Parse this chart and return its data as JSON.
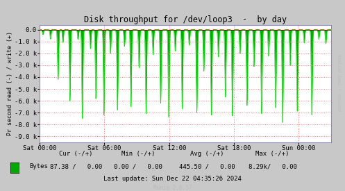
{
  "title": "Disk throughput for /dev/loop3  -  by day",
  "ylabel": "Pr second read (-) / write (+)",
  "ylim": [
    -9500,
    400
  ],
  "yticks": [
    0,
    -1000,
    -2000,
    -3000,
    -4000,
    -5000,
    -6000,
    -7000,
    -8000,
    -9000
  ],
  "ytick_labels": [
    "0.0",
    "-1.0 k",
    "-2.0 k",
    "-3.0 k",
    "-4.0 k",
    "-5.0 k",
    "-6.0 k",
    "-7.0 k",
    "-8.0 k",
    "-9.0 k"
  ],
  "xtick_labels": [
    "Sat 00:00",
    "Sat 06:00",
    "Sat 12:00",
    "Sat 18:00",
    "Sun 00:00"
  ],
  "xtick_hours": [
    0,
    6,
    12,
    18,
    24
  ],
  "bg_color": "#C8C8C8",
  "plot_bg_color": "#FFFFFF",
  "grid_color": "#FF8080",
  "line_color": "#00EE00",
  "line_fill_color": "#00AA00",
  "zero_line_color": "#990000",
  "arrow_color": "#8888CC",
  "legend_label": "Bytes",
  "legend_color": "#00AA00",
  "cur_label": "Cur (-/+)",
  "min_label": "Min (-/+)",
  "avg_label": "Avg (-/+)",
  "max_label": "Max (-/+)",
  "cur_val": "87.38 /   0.00",
  "min_val": "0.00 /   0.00",
  "avg_val": "445.50 /   0.00",
  "max_val": "8.29k/   0.00",
  "last_update": "Last update: Sun Dec 22 04:35:26 2024",
  "munin_label": "Munin 2.0.57",
  "rrdtool_label": "RRDTOOL / TOBI OETIKER",
  "watermark_color": "#BBBBBB",
  "num_hours": 27,
  "spike_positions": [
    0.3,
    1.0,
    1.7,
    2.15,
    2.8,
    3.55,
    3.95,
    4.7,
    5.2,
    5.95,
    6.55,
    7.2,
    7.85,
    8.45,
    9.2,
    9.85,
    10.5,
    11.2,
    11.95,
    12.55,
    13.2,
    13.85,
    14.55,
    15.2,
    15.9,
    16.55,
    17.2,
    17.85,
    18.55,
    19.2,
    19.85,
    20.55,
    21.2,
    21.85,
    22.5,
    23.2,
    23.85,
    24.5,
    25.2,
    25.85,
    26.5
  ],
  "spike_depths": [
    -400,
    -800,
    -4200,
    -1100,
    -6000,
    -800,
    -7500,
    -1600,
    -5800,
    -7200,
    -2000,
    -6800,
    -1400,
    -6500,
    -3200,
    -7100,
    -2100,
    -6200,
    -7400,
    -1800,
    -6700,
    -1300,
    -7000,
    -3500,
    -7200,
    -2300,
    -5700,
    -7300,
    -2000,
    -6400,
    -3100,
    -7100,
    -2200,
    -6600,
    -7800,
    -3000,
    -6900,
    -1100,
    -7200,
    -800,
    -1200
  ]
}
